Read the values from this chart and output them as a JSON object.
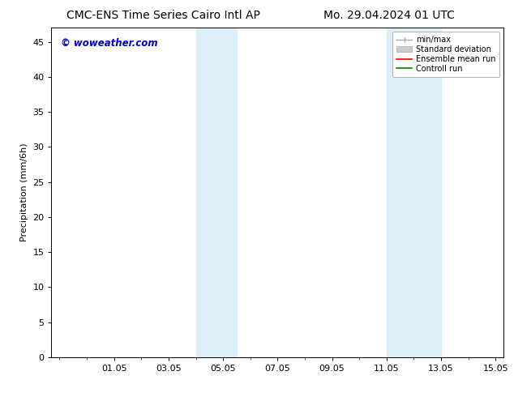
{
  "title_left": "CMC-ENS Time Series Cairo Intl AP",
  "title_right": "Mo. 29.04.2024 01 UTC",
  "ylabel": "Precipitation (mm/6h)",
  "watermark": "© woweather.com",
  "watermark_color": "#0000cc",
  "ylim": [
    0,
    47
  ],
  "yticks": [
    0,
    5,
    10,
    15,
    20,
    25,
    30,
    35,
    40,
    45
  ],
  "xtick_labels": [
    "01.05",
    "03.05",
    "05.05",
    "07.05",
    "09.05",
    "11.05",
    "13.05",
    "15.05"
  ],
  "shaded_color": "#ddeef8",
  "background_color": "#ffffff",
  "title_fontsize": 10,
  "axis_fontsize": 8,
  "tick_fontsize": 8
}
